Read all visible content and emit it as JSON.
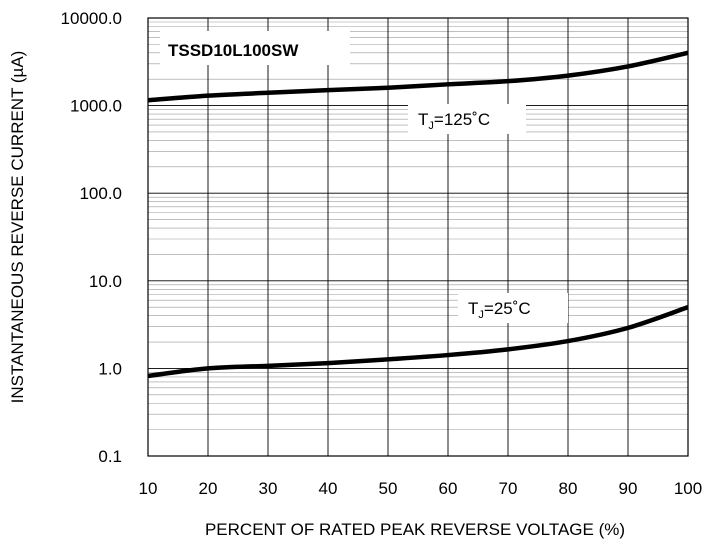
{
  "chart_data": {
    "type": "line",
    "title": "",
    "annotation_box": "TSSD10L100SW",
    "xlabel": "PERCENT OF RATED PEAK REVERSE VOLTAGE (%)",
    "ylabel": "INSTANTANEOUS REVERSE CURRENT (µA)",
    "x_scale": "linear",
    "y_scale": "log",
    "xlim": [
      10,
      100
    ],
    "ylim": [
      0.1,
      10000
    ],
    "x_ticks": [
      10,
      20,
      30,
      40,
      50,
      60,
      70,
      80,
      90,
      100
    ],
    "x_tick_labels": [
      "10",
      "20",
      "30",
      "40",
      "50",
      "60",
      "70",
      "80",
      "90",
      "100"
    ],
    "y_ticks": [
      0.1,
      1,
      10,
      100,
      1000,
      10000
    ],
    "y_tick_labels": [
      "0.1",
      "1.0",
      "10.0",
      "100.0",
      "1000.0",
      "10000.0"
    ],
    "grid": true,
    "x": [
      10,
      20,
      30,
      40,
      50,
      60,
      70,
      80,
      90,
      100
    ],
    "series": [
      {
        "label_main": "T",
        "label_sub": "J",
        "label_rest": "=125˚C",
        "values": [
          1150,
          1300,
          1400,
          1500,
          1600,
          1750,
          1900,
          2200,
          2800,
          4000
        ],
        "color": "#000000"
      },
      {
        "label_main": "T",
        "label_sub": "J",
        "label_rest": "=25˚C",
        "values": [
          0.82,
          1.0,
          1.07,
          1.15,
          1.27,
          1.42,
          1.65,
          2.05,
          2.9,
          5.0
        ],
        "color": "#000000"
      }
    ]
  }
}
